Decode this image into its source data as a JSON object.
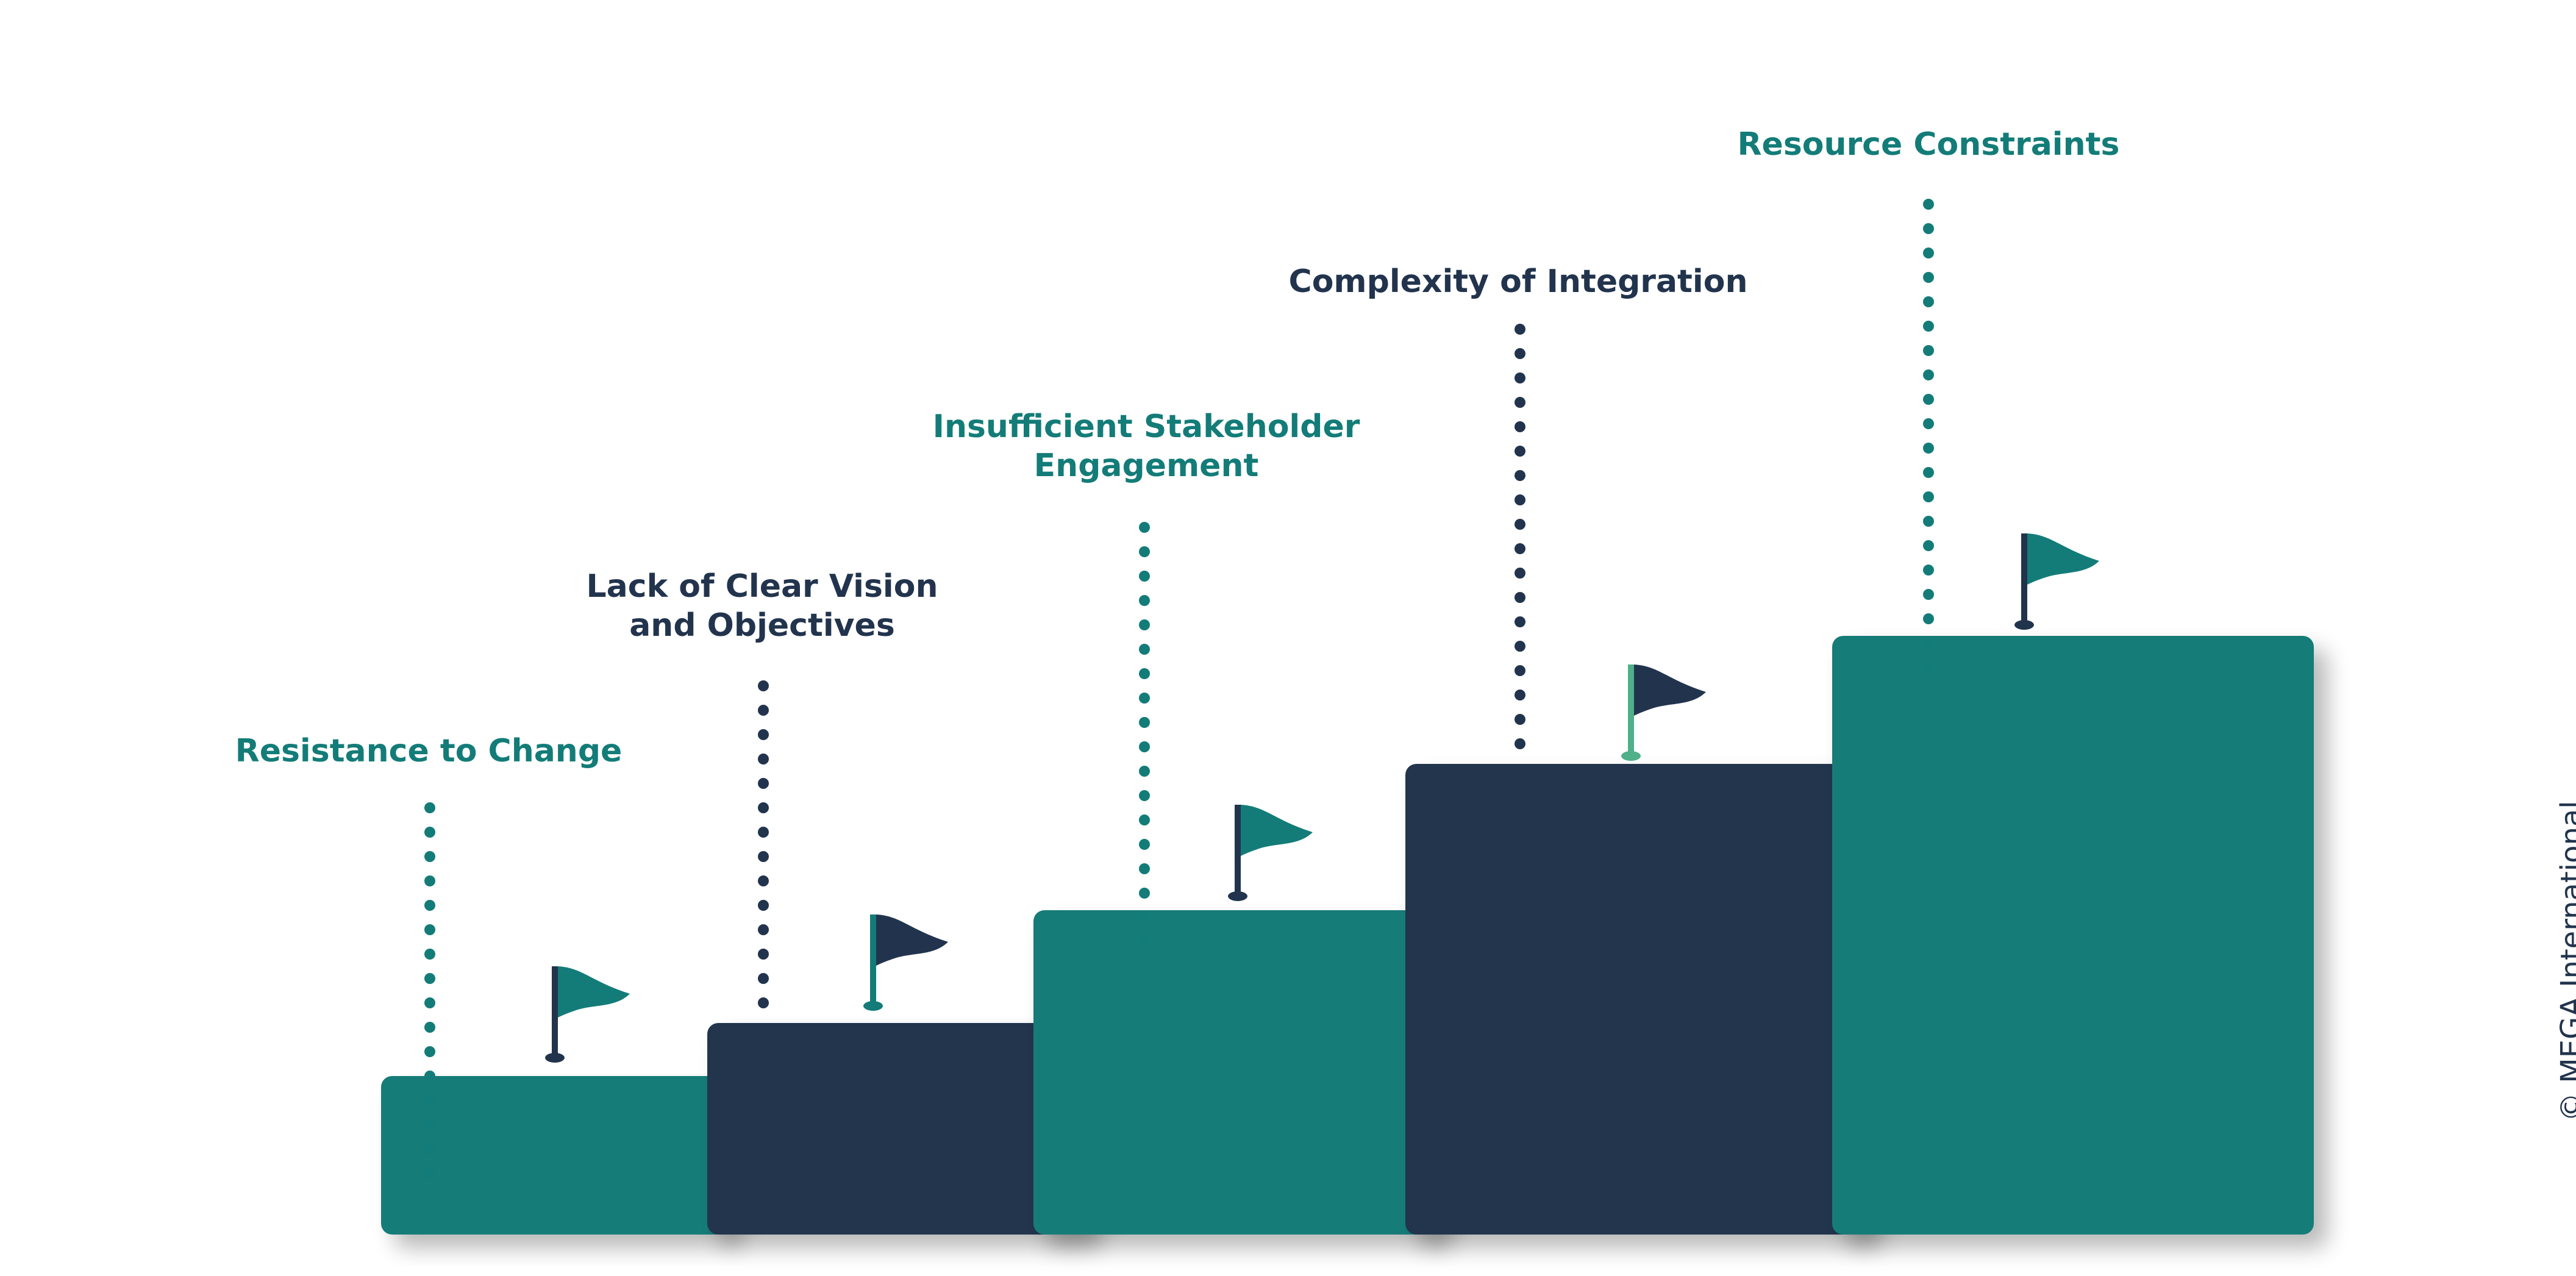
{
  "colors": {
    "teal": "#137c78",
    "navy": "#22344d",
    "pole_light": "#4fb08a"
  },
  "steps": [
    {
      "label_lines": [
        "Resistance to Change"
      ],
      "color": "teal",
      "flag_color": "teal",
      "pole_color": "navy"
    },
    {
      "label_lines": [
        "Lack of Clear Vision",
        "and Objectives"
      ],
      "color": "navy",
      "flag_color": "navy",
      "pole_color": "teal"
    },
    {
      "label_lines": [
        "Insufficient Stakeholder",
        "Engagement"
      ],
      "color": "teal",
      "flag_color": "teal",
      "pole_color": "navy"
    },
    {
      "label_lines": [
        "Complexity of Integration"
      ],
      "color": "navy",
      "flag_color": "navy",
      "pole_color": "pole_light"
    },
    {
      "label_lines": [
        "Resource Constraints"
      ],
      "color": "teal",
      "flag_color": "teal",
      "pole_color": "navy"
    }
  ],
  "footer": {
    "copyright": "© MEGA International"
  }
}
